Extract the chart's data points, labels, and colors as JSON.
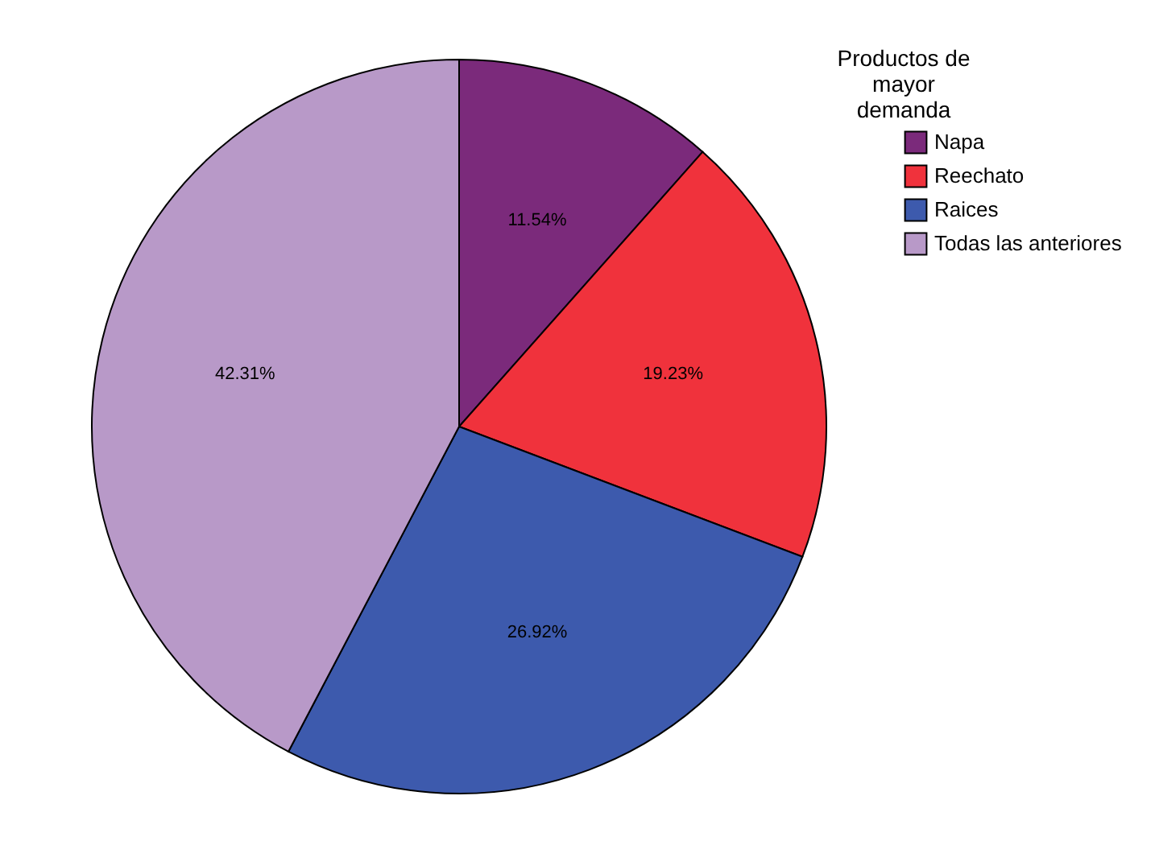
{
  "chart_data": {
    "type": "pie",
    "legend_title": "Productos de mayor demanda",
    "categories": [
      "Napa",
      "Reechato",
      "Raices",
      "Todas las anteriores"
    ],
    "values": [
      11.54,
      19.23,
      26.92,
      42.31
    ],
    "colors": [
      "#7b2a7b",
      "#f0323c",
      "#3d5aad",
      "#b899c8"
    ],
    "value_labels": [
      "11.54%",
      "19.23%",
      "26.92%",
      "42.31%"
    ],
    "legend": "top right"
  }
}
